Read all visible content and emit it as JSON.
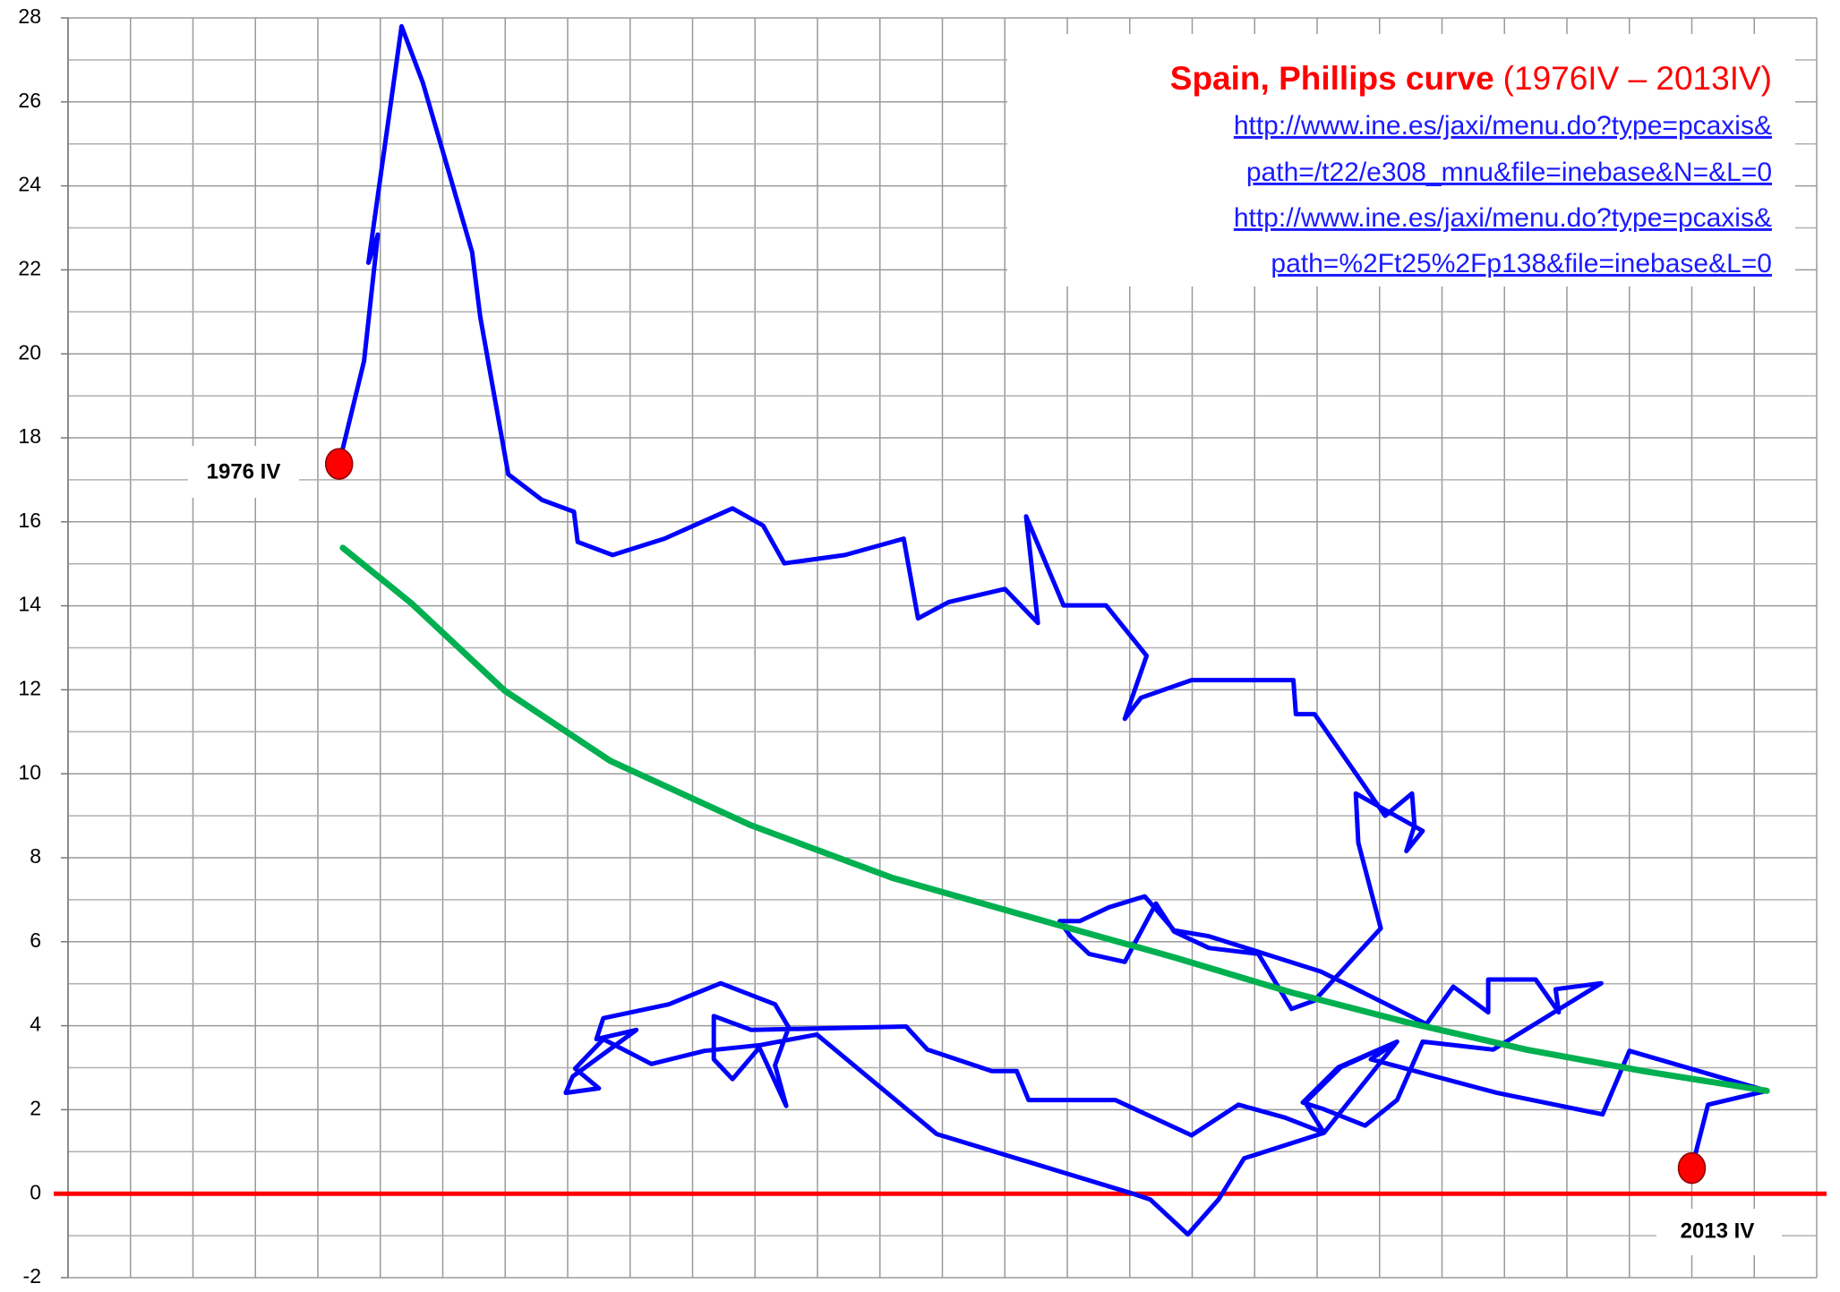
{
  "chart_data": {
    "type": "line",
    "title": "Spain, Phillips curve",
    "subtitle": "(1976IV – 2013IV)",
    "links": [
      "http://www.ine.es/jaxi/menu.do?type=pcaxis&",
      "path=/t22/e308_mnu&file=inebase&N=&L=0",
      "http://www.ine.es/jaxi/menu.do?type=pcaxis&",
      "path=%2Ft25%2Fp138&file=inebase&L=0"
    ],
    "annotations": [
      "1976 IV",
      "2013 IV"
    ],
    "xlim": [
      0,
      28
    ],
    "xticks": [
      0,
      1,
      2,
      3,
      4,
      5,
      6,
      7,
      8,
      9,
      10,
      11,
      12,
      13,
      14,
      15,
      16,
      17,
      18,
      19,
      20,
      21,
      22,
      23,
      24,
      25,
      26,
      27,
      28
    ],
    "ylim": [
      -2,
      28
    ],
    "yticks": [
      -2,
      0,
      2,
      4,
      6,
      8,
      10,
      12,
      14,
      16,
      18,
      20,
      22,
      24,
      26,
      28
    ],
    "yminor_ticks": [
      -1,
      1,
      3,
      5,
      7,
      9,
      11,
      13,
      15,
      17,
      19,
      21,
      23,
      25,
      27
    ],
    "grid": true,
    "hline": {
      "value": 0,
      "color": "#ff0000"
    },
    "marker_color": "#ff0000",
    "series": [
      {
        "color": "#0000ff",
        "x": [
          4.34,
          4.74,
          4.96,
          4.81,
          5.34,
          5.68,
          6.47,
          6.6,
          7.05,
          7.59,
          8.1,
          8.16,
          8.72,
          9.55,
          10.64,
          11.13,
          11.47,
          12.44,
          13.38,
          13.61,
          14.1,
          15.0,
          15.53,
          15.34,
          15.94,
          16.62,
          17.27,
          16.92,
          17.18,
          17.99,
          19.62,
          19.66,
          19.96,
          21.09,
          21.52,
          21.56,
          21.43,
          21.69,
          20.62,
          20.66,
          21.02,
          19.96,
          19.59,
          19.06,
          18.27,
          17.71,
          17.42,
          16.92,
          16.35,
          16.05,
          15.88,
          16.2,
          16.67,
          17.24,
          17.71,
          18.27,
          20.06,
          21.75,
          22.18,
          22.74,
          22.74,
          23.5,
          23.87,
          23.82,
          24.55,
          22.82,
          21.69,
          21.28,
          20.77,
          20.11,
          19.77,
          20.34,
          21.28,
          20.11,
          19.49,
          18.74,
          17.99,
          16.77,
          15.38,
          15.19,
          14.79,
          13.76,
          13.42,
          10.94,
          10.34,
          10.34,
          10.64,
          11.07,
          11.5,
          11.32,
          11.54,
          11.32,
          10.45,
          9.62,
          8.57,
          8.46,
          9.1,
          8.08,
          7.97,
          8.5,
          8.12,
          8.57,
          9.34,
          10.19,
          11.09,
          11.99,
          13.91,
          17.05,
          17.33,
          17.93,
          18.42,
          18.83,
          20.11,
          19.81,
          20.38,
          21.28,
          20.86,
          22.88,
          24.57,
          25.0,
          27.2,
          26.26,
          26.0
        ],
        "values": [
          17.38,
          19.83,
          22.84,
          22.17,
          27.8,
          26.46,
          22.42,
          20.89,
          17.13,
          16.52,
          16.24,
          15.52,
          15.21,
          15.6,
          16.32,
          15.91,
          15.01,
          15.21,
          15.6,
          13.7,
          14.09,
          14.4,
          13.59,
          16.13,
          14.01,
          14.01,
          12.81,
          11.31,
          11.81,
          12.23,
          12.23,
          11.42,
          11.42,
          9.0,
          9.53,
          8.77,
          8.16,
          8.64,
          9.53,
          8.36,
          6.32,
          4.6,
          4.4,
          5.71,
          5.85,
          6.24,
          6.91,
          5.52,
          5.71,
          6.13,
          6.49,
          6.49,
          6.82,
          7.08,
          6.27,
          6.13,
          5.29,
          4.04,
          4.93,
          4.32,
          5.1,
          5.1,
          4.32,
          4.87,
          5.01,
          3.43,
          3.62,
          2.23,
          1.62,
          2.01,
          2.17,
          3.01,
          3.62,
          1.45,
          1.81,
          2.12,
          1.39,
          2.23,
          2.23,
          2.92,
          2.92,
          3.43,
          3.98,
          3.9,
          4.23,
          3.2,
          2.73,
          3.48,
          2.09,
          3.06,
          3.96,
          4.51,
          5.01,
          4.51,
          4.18,
          3.68,
          3.9,
          2.79,
          2.4,
          2.51,
          2.98,
          3.68,
          3.09,
          3.4,
          3.54,
          3.79,
          1.42,
          0.0,
          -0.14,
          -0.97,
          -0.14,
          0.84,
          1.45,
          2.17,
          3.01,
          3.62,
          3.2,
          2.4,
          1.89,
          3.4,
          2.45,
          2.12,
          0.61
        ]
      },
      {
        "color": "#00b050",
        "x": [
          4.4,
          5.49,
          6.99,
          8.68,
          10.94,
          13.2,
          15.83,
          17.71,
          19.59,
          21.47,
          23.35,
          25.23,
          27.2
        ],
        "values": [
          15.38,
          14.07,
          11.98,
          10.31,
          8.77,
          7.52,
          6.41,
          5.63,
          4.79,
          4.07,
          3.43,
          2.92,
          2.45
        ]
      }
    ]
  }
}
